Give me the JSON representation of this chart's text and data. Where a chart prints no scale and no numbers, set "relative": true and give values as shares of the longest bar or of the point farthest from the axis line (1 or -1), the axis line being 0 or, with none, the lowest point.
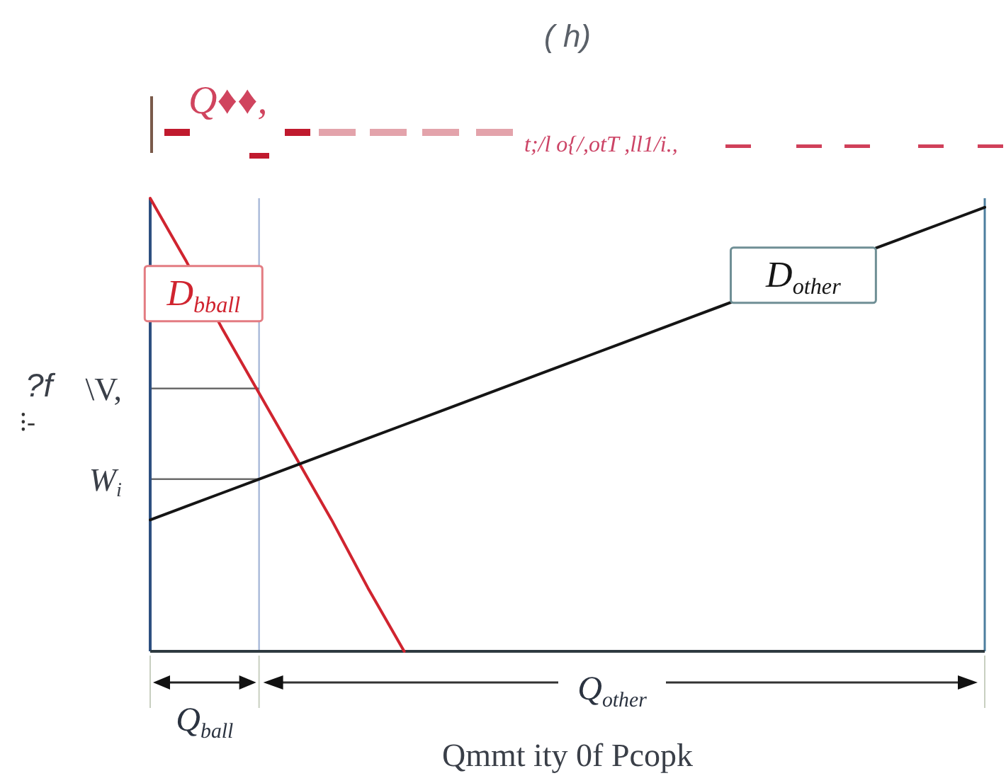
{
  "chart_data": {
    "type": "line",
    "title": "( h)",
    "xlabel": "Qmmt ity 0f Pcopk",
    "ylabel": "?f",
    "relative": true,
    "categories": [
      null,
      null,
      null,
      null,
      null,
      null,
      null,
      null,
      null,
      null,
      null,
      null,
      null,
      null,
      null,
      null,
      null,
      null,
      null,
      null,
      null,
      null,
      null,
      null
    ],
    "series": [
      {
        "name": "D$_{bball}$",
        "color": "#d0242f",
        "values": [
          1.0,
          0.86,
          0.71,
          0.57,
          0.43,
          0.29,
          0.14,
          0,
          null,
          null,
          null,
          null,
          null,
          null,
          null,
          null,
          null,
          null,
          null,
          null,
          null,
          null,
          null,
          null
        ]
      },
      {
        "name": "D$_{other}$",
        "color": "#151515",
        "values": [
          0.29,
          0.32,
          0.35,
          0.38,
          0.41,
          0.44,
          0.47,
          0.5,
          0.53,
          0.56,
          0.59,
          0.62,
          0.65,
          0.68,
          0.71,
          0.74,
          0.77,
          null,
          null,
          null,
          0.89,
          0.92,
          0.95,
          0.98
        ]
      }
    ],
    "ref_lines": [
      {
        "axis": "y",
        "value": 0.58,
        "label": "\\V,",
        "color": "#6b6b6b"
      },
      {
        "axis": "y",
        "value": 0.38,
        "label": "W$_{i}$",
        "color": "#6b6b6b"
      }
    ],
    "annotations": [
      "Q$_{ball}$",
      "Q$_{other}$",
      "Q♦♦,",
      "t;/l o{/,otT ,ll1/i.,",
      "⁝-"
    ]
  }
}
